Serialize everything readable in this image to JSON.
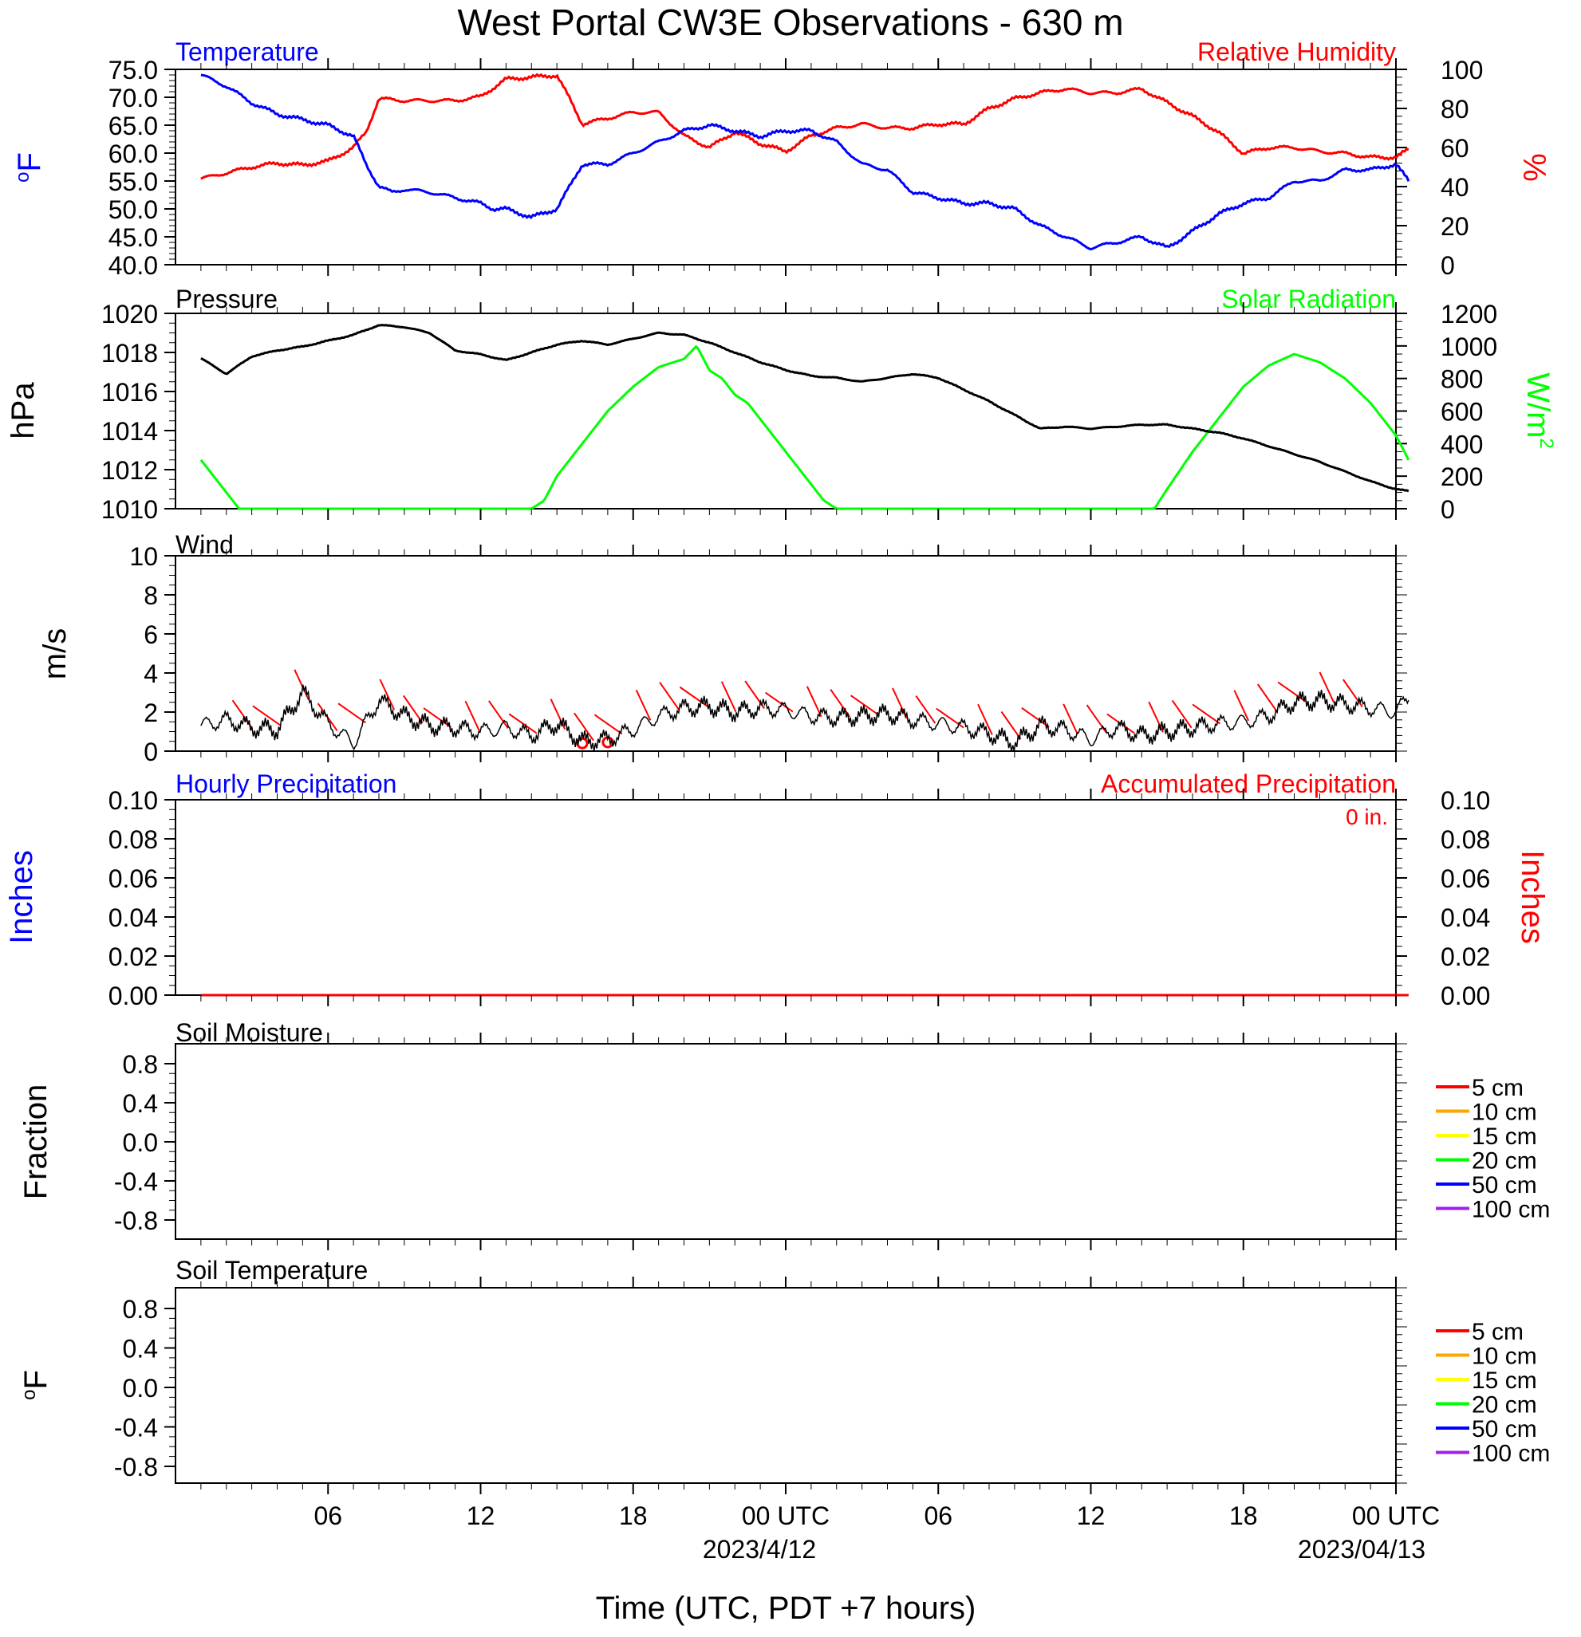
{
  "title": "West Portal CW3E Observations - 630 m",
  "xaxis": {
    "label": "Time (UTC, PDT +7 hours)",
    "tick_labels": [
      "06",
      "12",
      "18",
      "00 UTC",
      "06",
      "12",
      "18",
      "00 UTC"
    ],
    "date_labels": [
      "2023/4/12",
      "2023/04/13"
    ]
  },
  "colors": {
    "temperature": "#0000ff",
    "humidity": "#ff0000",
    "pressure": "#000000",
    "solar": "#00ff00",
    "wind": "#000000",
    "barbs": "#ff0000",
    "precip_hourly": "#0000ff",
    "precip_accum": "#ff0000"
  },
  "panels": {
    "temp_rh": {
      "left_title": "Temperature",
      "right_title": "Relative Humidity",
      "left_unit": "F",
      "right_unit": "%",
      "left_ticks": [
        "75.0",
        "70.0",
        "65.0",
        "60.0",
        "55.0",
        "50.0",
        "45.0",
        "40.0"
      ],
      "right_ticks": [
        "100",
        "80",
        "60",
        "40",
        "20",
        "0"
      ]
    },
    "pressure_solar": {
      "left_title": "Pressure",
      "right_title": "Solar Radiation",
      "left_unit": "hPa",
      "right_unit": "W/m",
      "right_unit_sup": "2",
      "left_ticks": [
        "1020",
        "1018",
        "1016",
        "1014",
        "1012",
        "1010"
      ],
      "right_ticks": [
        "1200",
        "1000",
        "800",
        "600",
        "400",
        "200",
        "0"
      ]
    },
    "wind": {
      "left_title": "Wind",
      "left_unit": "m/s",
      "left_ticks": [
        "10",
        "8",
        "6",
        "4",
        "2",
        "0"
      ]
    },
    "precip": {
      "left_title": "Hourly Precipitation",
      "right_title": "Accumulated Precipitation",
      "accum_total": "0 in.",
      "left_unit": "Inches",
      "right_unit": "Inches",
      "left_ticks": [
        "0.10",
        "0.08",
        "0.06",
        "0.04",
        "0.02",
        "0.00"
      ],
      "right_ticks": [
        "0.10",
        "0.08",
        "0.06",
        "0.04",
        "0.02",
        "0.00"
      ]
    },
    "soil_moisture": {
      "left_title": "Soil Moisture",
      "left_unit": "Fraction",
      "left_ticks": [
        "0.8",
        "0.4",
        "0.0",
        "-0.4",
        "-0.8"
      ],
      "legend": [
        {
          "label": "5 cm",
          "color": "#ff0000"
        },
        {
          "label": "10 cm",
          "color": "#ffa500"
        },
        {
          "label": "15 cm",
          "color": "#ffff00"
        },
        {
          "label": "20 cm",
          "color": "#00ff00"
        },
        {
          "label": "50 cm",
          "color": "#0000ff"
        },
        {
          "label": "100 cm",
          "color": "#a020f0"
        }
      ]
    },
    "soil_temp": {
      "left_title": "Soil Temperature",
      "left_unit": "F",
      "left_ticks": [
        "0.8",
        "0.4",
        "0.0",
        "-0.4",
        "-0.8"
      ],
      "legend": [
        {
          "label": "5 cm",
          "color": "#ff0000"
        },
        {
          "label": "10 cm",
          "color": "#ffa500"
        },
        {
          "label": "15 cm",
          "color": "#ffff00"
        },
        {
          "label": "20 cm",
          "color": "#00ff00"
        },
        {
          "label": "50 cm",
          "color": "#0000ff"
        },
        {
          "label": "100 cm",
          "color": "#a020f0"
        }
      ]
    }
  },
  "chart_data": [
    {
      "type": "line",
      "title": "Temperature",
      "ylabel": "F",
      "x_unit": "hours since 2023-04-11 01:00 UTC",
      "ylim": [
        40,
        75
      ],
      "x": [
        0,
        1,
        2,
        3,
        4,
        5,
        6,
        6.5,
        7,
        7.5,
        8,
        9,
        10,
        11,
        11.5,
        12,
        13,
        14,
        14.5,
        15,
        16,
        17,
        18,
        19,
        20,
        21,
        22,
        23,
        24,
        25,
        26,
        27,
        28,
        29,
        30,
        31,
        32,
        33,
        34,
        35,
        36,
        37,
        38,
        39,
        40,
        41,
        42,
        43,
        44,
        45,
        46,
        47,
        47.5
      ],
      "values": [
        74,
        72,
        69,
        67,
        66,
        65,
        63,
        58,
        54,
        53,
        53.5,
        53,
        52,
        51,
        50,
        50,
        48.5,
        50,
        54,
        58,
        58,
        60,
        62,
        64,
        65,
        64,
        63,
        64,
        64,
        62,
        58,
        57,
        53,
        52,
        51,
        51,
        50,
        47,
        45,
        43,
        44,
        45,
        43,
        46,
        49,
        51,
        52,
        55,
        55,
        57,
        57,
        58,
        55
      ]
    },
    {
      "type": "line",
      "title": "Relative Humidity",
      "ylabel": "%",
      "x_unit": "hours since 2023-04-11 01:00 UTC",
      "ylim": [
        0,
        100
      ],
      "x": [
        0,
        1,
        2,
        3,
        4,
        5,
        6,
        6.5,
        7,
        8,
        9,
        10,
        11,
        12,
        13,
        14,
        14.5,
        15,
        16,
        17,
        18,
        19,
        20,
        21,
        22,
        23,
        24,
        25,
        26,
        27,
        28,
        29,
        30,
        31,
        32,
        33,
        34,
        35,
        36,
        37,
        38,
        39,
        40,
        41,
        42,
        43,
        44,
        45,
        46,
        47,
        47.5
      ],
      "values": [
        44,
        47,
        50,
        52,
        51,
        53,
        60,
        68,
        85,
        84,
        84,
        84,
        86,
        95,
        96,
        97,
        85,
        72,
        75,
        78,
        78,
        66,
        60,
        68,
        62,
        58,
        66,
        70,
        72,
        70,
        70,
        72,
        72,
        80,
        85,
        88,
        90,
        88,
        88,
        90,
        83,
        76,
        68,
        57,
        60,
        60,
        58,
        57,
        55,
        55,
        59
      ]
    },
    {
      "type": "line",
      "title": "Pressure",
      "ylabel": "hPa",
      "x_unit": "hours since 2023-04-11 01:00 UTC",
      "ylim": [
        1010,
        1020
      ],
      "x": [
        0,
        1,
        2,
        3,
        4,
        5,
        6,
        7,
        8,
        9,
        10,
        11,
        12,
        13,
        14,
        15,
        16,
        17,
        18,
        19,
        20,
        21,
        22,
        23,
        24,
        25,
        26,
        27,
        28,
        29,
        30,
        31,
        32,
        33,
        34,
        35,
        36,
        37,
        38,
        39,
        40,
        41,
        42,
        43,
        44,
        45,
        46,
        47,
        47.5
      ],
      "values": [
        1017.7,
        1016.9,
        1017.8,
        1018.1,
        1018.3,
        1018.6,
        1018.9,
        1019.4,
        1019.3,
        1019,
        1018.1,
        1017.9,
        1017.6,
        1018,
        1018.4,
        1018.6,
        1018.4,
        1018.7,
        1019,
        1018.9,
        1018.5,
        1018,
        1017.5,
        1017.1,
        1016.8,
        1016.7,
        1016.5,
        1016.7,
        1016.9,
        1016.7,
        1016.1,
        1015.5,
        1014.8,
        1014.1,
        1014.2,
        1014.1,
        1014.2,
        1014.3,
        1014.3,
        1014.1,
        1013.9,
        1013.6,
        1013.2,
        1012.8,
        1012.4,
        1011.9,
        1011.4,
        1011.0,
        1010.9
      ]
    },
    {
      "type": "line",
      "title": "Solar Radiation",
      "ylabel": "W/m2",
      "x_unit": "hours since 2023-04-11 01:00 UTC",
      "ylim": [
        0,
        1200
      ],
      "x": [
        0,
        1.5,
        13,
        13.5,
        14,
        15,
        16,
        17,
        18,
        19,
        19.5,
        20,
        20.5,
        21,
        21.5,
        22,
        22.5,
        23,
        23.5,
        24,
        24.5,
        25,
        37.5,
        38,
        39,
        40,
        41,
        42,
        43,
        44,
        45,
        46,
        47,
        47.5
      ],
      "values": [
        300,
        0,
        0,
        50,
        200,
        400,
        600,
        750,
        870,
        920,
        1000,
        850,
        800,
        700,
        650,
        550,
        450,
        350,
        250,
        150,
        50,
        0,
        0,
        120,
        350,
        550,
        750,
        880,
        950,
        900,
        800,
        650,
        450,
        300
      ]
    },
    {
      "type": "line",
      "title": "Wind",
      "ylabel": "m/s",
      "x_unit": "hours since 2023-04-11 01:00 UTC",
      "ylim": [
        0,
        10
      ],
      "x": [
        0,
        1,
        2,
        3,
        4,
        5,
        6,
        7,
        8,
        9,
        10,
        11,
        12,
        13,
        14,
        15,
        16,
        17,
        18,
        19,
        20,
        21,
        22,
        23,
        24,
        25,
        26,
        27,
        28,
        29,
        30,
        31,
        32,
        33,
        34,
        35,
        36,
        37,
        38,
        39,
        40,
        41,
        42,
        43,
        44,
        45,
        46,
        47,
        47.5
      ],
      "values": [
        1.3,
        1.6,
        1.2,
        1.1,
        3.0,
        1.4,
        0.4,
        2.6,
        1.8,
        1.3,
        1.2,
        1.0,
        1.2,
        0.8,
        1.4,
        0.5,
        0.6,
        1.1,
        1.8,
        2.2,
        2.3,
        2.0,
        2.2,
        2.1,
        1.8,
        1.7,
        1.8,
        1.9,
        1.6,
        1.4,
        1.2,
        0.9,
        0.4,
        1.3,
        1.1,
        0.6,
        1.2,
        0.8,
        1.0,
        1.2,
        1.4,
        1.5,
        1.8,
        2.5,
        2.6,
        2.4,
        2.2,
        2.0,
        2.8
      ]
    },
    {
      "type": "line",
      "title": "Hourly Precipitation",
      "ylabel": "Inches",
      "ylim": [
        0,
        0.1
      ],
      "x": [
        0,
        47.5
      ],
      "values": [
        0,
        0
      ]
    },
    {
      "type": "line",
      "title": "Accumulated Precipitation",
      "ylabel": "Inches",
      "ylim": [
        0,
        0.1
      ],
      "x": [
        0,
        47.5
      ],
      "values": [
        0,
        0
      ]
    },
    {
      "type": "line",
      "title": "Soil Moisture",
      "ylabel": "Fraction",
      "ylim": [
        -1,
        1
      ],
      "series": []
    },
    {
      "type": "line",
      "title": "Soil Temperature",
      "ylabel": "F",
      "ylim": [
        -1,
        1
      ],
      "series": []
    }
  ]
}
